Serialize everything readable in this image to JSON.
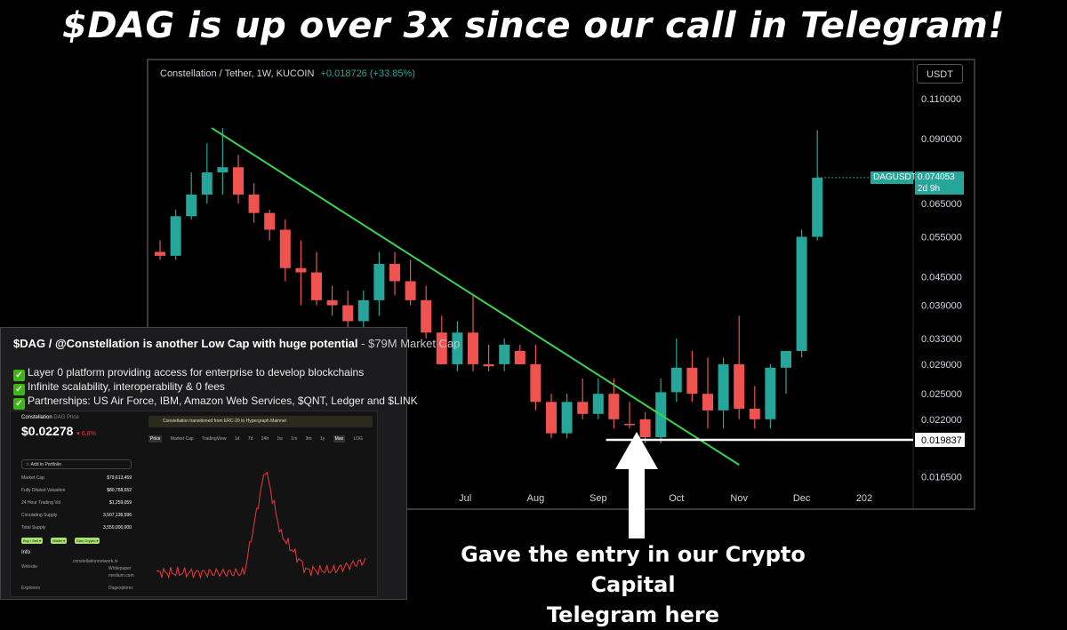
{
  "headline": "$DAG is up over 3x since our call in Telegram!",
  "caption": [
    "Gave the entry in our Crypto Capital",
    "Telegram here"
  ],
  "chart_data": {
    "type": "candlestick",
    "title": "Constellation / Tether, 1W, KUCOIN",
    "change": "+0.018726 (+33.85%)",
    "currency": "USDT",
    "scale": "log",
    "ylim": [
      0.0158,
      0.122
    ],
    "price_ticks": [
      "0.110000",
      "0.090000",
      "0.065000",
      "0.055000",
      "0.045000",
      "0.039000",
      "0.033000",
      "0.029000",
      "0.025000",
      "0.022000",
      "0.019837",
      "0.016500"
    ],
    "x_ticks": [
      {
        "label": "n",
        "idx": 15.0
      },
      {
        "label": "Jul",
        "idx": 19.5
      },
      {
        "label": "Aug",
        "idx": 24.0
      },
      {
        "label": "Sep",
        "idx": 28.0
      },
      {
        "label": "Oct",
        "idx": 33.0
      },
      {
        "label": "Nov",
        "idx": 37.0
      },
      {
        "label": "Dec",
        "idx": 41.0
      },
      {
        "label": "202",
        "idx": 45.0
      }
    ],
    "last_price_label": "DAGUSDT",
    "last_price": "0.074053",
    "countdown": "2d 9h",
    "support_level": 0.019837,
    "candles": [
      {
        "o": 0.051,
        "h": 0.054,
        "l": 0.049,
        "c": 0.05
      },
      {
        "o": 0.05,
        "h": 0.063,
        "l": 0.049,
        "c": 0.061
      },
      {
        "o": 0.061,
        "h": 0.076,
        "l": 0.06,
        "c": 0.068
      },
      {
        "o": 0.068,
        "h": 0.088,
        "l": 0.065,
        "c": 0.076
      },
      {
        "o": 0.076,
        "h": 0.095,
        "l": 0.068,
        "c": 0.078
      },
      {
        "o": 0.078,
        "h": 0.083,
        "l": 0.065,
        "c": 0.068
      },
      {
        "o": 0.068,
        "h": 0.072,
        "l": 0.059,
        "c": 0.062
      },
      {
        "o": 0.062,
        "h": 0.063,
        "l": 0.054,
        "c": 0.057
      },
      {
        "o": 0.057,
        "h": 0.06,
        "l": 0.044,
        "c": 0.047
      },
      {
        "o": 0.047,
        "h": 0.054,
        "l": 0.039,
        "c": 0.046
      },
      {
        "o": 0.046,
        "h": 0.051,
        "l": 0.039,
        "c": 0.04
      },
      {
        "o": 0.04,
        "h": 0.043,
        "l": 0.037,
        "c": 0.039
      },
      {
        "o": 0.039,
        "h": 0.042,
        "l": 0.034,
        "c": 0.036
      },
      {
        "o": 0.036,
        "h": 0.042,
        "l": 0.034,
        "c": 0.04
      },
      {
        "o": 0.04,
        "h": 0.051,
        "l": 0.037,
        "c": 0.048
      },
      {
        "o": 0.048,
        "h": 0.051,
        "l": 0.041,
        "c": 0.044
      },
      {
        "o": 0.044,
        "h": 0.049,
        "l": 0.039,
        "c": 0.04
      },
      {
        "o": 0.04,
        "h": 0.043,
        "l": 0.033,
        "c": 0.034
      },
      {
        "o": 0.034,
        "h": 0.037,
        "l": 0.029,
        "c": 0.029
      },
      {
        "o": 0.029,
        "h": 0.036,
        "l": 0.028,
        "c": 0.034
      },
      {
        "o": 0.034,
        "h": 0.041,
        "l": 0.028,
        "c": 0.029
      },
      {
        "o": 0.029,
        "h": 0.032,
        "l": 0.028,
        "c": 0.0287
      },
      {
        "o": 0.029,
        "h": 0.033,
        "l": 0.028,
        "c": 0.032
      },
      {
        "o": 0.031,
        "h": 0.032,
        "l": 0.029,
        "c": 0.029
      },
      {
        "o": 0.029,
        "h": 0.032,
        "l": 0.023,
        "c": 0.024
      },
      {
        "o": 0.024,
        "h": 0.025,
        "l": 0.02,
        "c": 0.0205
      },
      {
        "o": 0.0205,
        "h": 0.025,
        "l": 0.02,
        "c": 0.024
      },
      {
        "o": 0.024,
        "h": 0.027,
        "l": 0.022,
        "c": 0.0226
      },
      {
        "o": 0.0226,
        "h": 0.027,
        "l": 0.022,
        "c": 0.025
      },
      {
        "o": 0.025,
        "h": 0.027,
        "l": 0.021,
        "c": 0.022
      },
      {
        "o": 0.0215,
        "h": 0.024,
        "l": 0.021,
        "c": 0.0214
      },
      {
        "o": 0.022,
        "h": 0.0228,
        "l": 0.0195,
        "c": 0.0201
      },
      {
        "o": 0.0201,
        "h": 0.027,
        "l": 0.0195,
        "c": 0.0252
      },
      {
        "o": 0.0252,
        "h": 0.033,
        "l": 0.024,
        "c": 0.0285
      },
      {
        "o": 0.0285,
        "h": 0.031,
        "l": 0.024,
        "c": 0.025
      },
      {
        "o": 0.025,
        "h": 0.03,
        "l": 0.021,
        "c": 0.023
      },
      {
        "o": 0.023,
        "h": 0.03,
        "l": 0.021,
        "c": 0.029
      },
      {
        "o": 0.029,
        "h": 0.037,
        "l": 0.022,
        "c": 0.0232
      },
      {
        "o": 0.0232,
        "h": 0.026,
        "l": 0.021,
        "c": 0.022
      },
      {
        "o": 0.022,
        "h": 0.029,
        "l": 0.021,
        "c": 0.0285
      },
      {
        "o": 0.0285,
        "h": 0.031,
        "l": 0.025,
        "c": 0.031
      },
      {
        "o": 0.031,
        "h": 0.057,
        "l": 0.03,
        "c": 0.055
      },
      {
        "o": 0.055,
        "h": 0.094,
        "l": 0.054,
        "c": 0.074
      }
    ],
    "trendline": [
      {
        "idx": 3.3,
        "price": 0.095
      },
      {
        "idx": 37.0,
        "price": 0.0175
      }
    ],
    "colors": {
      "up": "#26a69a",
      "down": "#ef5350",
      "trend": "#39d353",
      "support": "#ffffff"
    }
  },
  "overlay": {
    "heading": "$DAG / @Constellation is another Low Cap with huge potential",
    "heading_suffix": " - $79M Market Cap",
    "bullets": [
      "Layer 0 platform providing access for enterprise to develop blockchains",
      "Infinite scalability, interoperability & 0 fees",
      "Partnerships: US Air Force, IBM, Amazon Web Services, $QNT, Ledger and $LINK"
    ],
    "mini": {
      "coin": "Constellation",
      "coin_ticker": "DAG Price",
      "price": "$0.02278",
      "pct": "▾ 6.8%",
      "add": "☆ Add to Portfolio",
      "stats": [
        {
          "k": "Market Cap",
          "v": "$79,613,459"
        },
        {
          "k": "Fully Diluted Valuation",
          "v": "$80,768,652"
        },
        {
          "k": "24 Hour Trading Vol",
          "v": "$1,259,059"
        },
        {
          "k": "Circulating Supply",
          "v": "3,507,136,596"
        },
        {
          "k": "Total Supply",
          "v": "3,550,000,000"
        }
      ],
      "info": "Info",
      "website": "Website",
      "site1": "constellationnetwork.io",
      "site2": "Whitepaper",
      "site3": "medium.com",
      "explorers": "Explorers",
      "explorer_val": "Dagexplorer",
      "buttons": [
        "Buy / Sell ▾",
        "Wallet ▾",
        "Earn Crypto ▾"
      ],
      "banner": "Constellation transitioned from ERC-20 to Hypergraph Mainnet",
      "tabs": [
        "Price",
        "Market Cap",
        "TradingView",
        "1d",
        "7d",
        "24h",
        "1w",
        "1m",
        "3m",
        "1y",
        "Max",
        "LOG"
      ]
    }
  }
}
